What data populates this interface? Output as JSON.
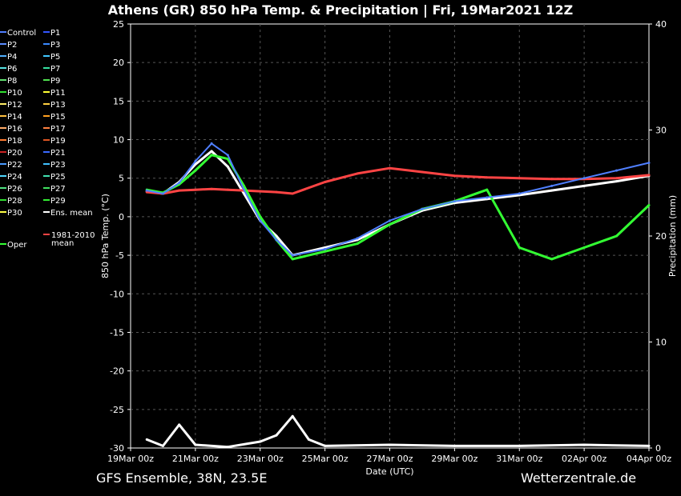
{
  "footer": {
    "left": "GFS Ensemble, 38N, 23.5E",
    "right": "Wetterzentrale.de"
  },
  "chart_data": {
    "type": "line",
    "title": "Athens  (GR)  850 hPa Temp. & Precipitation | Fri, 19Mar2021 12Z",
    "xlabel": "Date (UTC)",
    "ylabel": "850 hPa Temp. (°C)",
    "ylabel_right": "Precipitation (mm)",
    "ylim": [
      -30,
      25
    ],
    "ylim_right": [
      0,
      40
    ],
    "yticks": [
      25,
      20,
      15,
      10,
      5,
      0,
      -5,
      -10,
      -15,
      -20,
      -25,
      -30
    ],
    "yticks_right": [
      40,
      30,
      20,
      10,
      0
    ],
    "xticks": [
      "19Mar 00z",
      "21Mar 00z",
      "23Mar 00z",
      "25Mar 00z",
      "27Mar 00z",
      "29Mar 00z",
      "31Mar 00z",
      "02Apr 00z",
      "04Apr 00z"
    ],
    "x_hours": [
      12,
      24,
      36,
      48,
      60,
      72,
      84,
      96,
      108,
      120,
      144,
      168,
      192,
      216,
      240,
      264,
      288,
      312,
      336,
      360,
      384
    ],
    "grid": true,
    "legend_position": "left",
    "legend": [
      {
        "name": "Control",
        "color": "#4f7fff"
      },
      {
        "name": "P1",
        "color": "#3355ff"
      },
      {
        "name": "P2",
        "color": "#5a8cff"
      },
      {
        "name": "P3",
        "color": "#3a8aff"
      },
      {
        "name": "P4",
        "color": "#4fb0ff"
      },
      {
        "name": "P5",
        "color": "#40c8ff"
      },
      {
        "name": "P6",
        "color": "#55e0e0"
      },
      {
        "name": "P7",
        "color": "#35e0a0"
      },
      {
        "name": "P8",
        "color": "#60e070"
      },
      {
        "name": "P9",
        "color": "#50e050"
      },
      {
        "name": "P10",
        "color": "#30e030"
      },
      {
        "name": "P11",
        "color": "#ffff33"
      },
      {
        "name": "P12",
        "color": "#ffee66"
      },
      {
        "name": "P13",
        "color": "#ffd040"
      },
      {
        "name": "P14",
        "color": "#ffc040"
      },
      {
        "name": "P15",
        "color": "#ffa020"
      },
      {
        "name": "P16",
        "color": "#ffaa66"
      },
      {
        "name": "P17",
        "color": "#ff8040"
      },
      {
        "name": "P18",
        "color": "#ff7a30"
      },
      {
        "name": "P19",
        "color": "#dd5522"
      },
      {
        "name": "P20",
        "color": "#cc2222"
      },
      {
        "name": "P21",
        "color": "#3a6aff"
      },
      {
        "name": "P22",
        "color": "#4a9aff"
      },
      {
        "name": "P23",
        "color": "#40c0ff"
      },
      {
        "name": "P24",
        "color": "#50d8ff"
      },
      {
        "name": "P25",
        "color": "#40e0b0"
      },
      {
        "name": "P26",
        "color": "#50e080"
      },
      {
        "name": "P27",
        "color": "#40e060"
      },
      {
        "name": "P28",
        "color": "#30dd30"
      },
      {
        "name": "P29",
        "color": "#33ee33"
      },
      {
        "name": "P30",
        "color": "#ffff44"
      },
      {
        "name": "Ens. mean",
        "color": "#ffffff"
      },
      {
        "name": "1981-2010 mean",
        "color": "#ff4444"
      },
      {
        "name": "Oper",
        "color": "#33ff33"
      }
    ],
    "series": [
      {
        "name": "Ens. mean",
        "role": "temperature",
        "color": "#ffffff",
        "x": [
          "19Mar 12z",
          "20Mar 00z",
          "20Mar 12z",
          "21Mar 00z",
          "21Mar 12z",
          "22Mar 00z",
          "22Mar 12z",
          "23Mar 00z",
          "23Mar 12z",
          "24Mar 00z",
          "25Mar 00z",
          "26Mar 00z",
          "27Mar 00z",
          "28Mar 00z",
          "29Mar 00z",
          "30Mar 00z",
          "31Mar 00z",
          "01Apr 00z",
          "02Apr 00z",
          "03Apr 00z",
          "04Apr 00z"
        ],
        "values": [
          3.3,
          3.0,
          4.5,
          6.8,
          8.5,
          6.5,
          3.0,
          -0.5,
          -2.5,
          -5.0,
          -4.0,
          -3.0,
          -1.0,
          0.8,
          1.8,
          2.3,
          2.8,
          3.4,
          4.0,
          4.6,
          5.3
        ]
      },
      {
        "name": "1981-2010 mean",
        "role": "temperature",
        "color": "#ff4444",
        "x": [
          "19Mar 12z",
          "20Mar 00z",
          "20Mar 12z",
          "21Mar 00z",
          "21Mar 12z",
          "22Mar 00z",
          "22Mar 12z",
          "23Mar 00z",
          "23Mar 12z",
          "24Mar 00z",
          "25Mar 00z",
          "26Mar 00z",
          "27Mar 00z",
          "28Mar 00z",
          "29Mar 00z",
          "30Mar 00z",
          "31Mar 00z",
          "01Apr 00z",
          "02Apr 00z",
          "03Apr 00z",
          "04Apr 00z"
        ],
        "values": [
          3.2,
          3.0,
          3.4,
          3.5,
          3.6,
          3.5,
          3.4,
          3.3,
          3.2,
          3.0,
          4.5,
          5.6,
          6.3,
          5.8,
          5.3,
          5.1,
          5.0,
          4.9,
          4.9,
          5.0,
          5.4
        ]
      },
      {
        "name": "Oper",
        "role": "temperature",
        "color": "#33ff33",
        "x": [
          "19Mar 12z",
          "20Mar 00z",
          "20Mar 12z",
          "21Mar 00z",
          "21Mar 12z",
          "22Mar 00z",
          "22Mar 12z",
          "23Mar 00z",
          "23Mar 12z",
          "24Mar 00z",
          "25Mar 00z",
          "26Mar 00z",
          "27Mar 00z",
          "28Mar 00z",
          "29Mar 00z",
          "30Mar 00z",
          "31Mar 00z",
          "01Apr 00z",
          "02Apr 00z",
          "03Apr 00z",
          "04Apr 00z"
        ],
        "values": [
          3.5,
          3.1,
          4.2,
          6.0,
          8.0,
          7.5,
          4.0,
          0.0,
          -3.0,
          -5.5,
          -4.5,
          -3.5,
          -1.0,
          1.0,
          2.0,
          3.5,
          -4.0,
          -5.5,
          -4.0,
          -2.5,
          1.5
        ]
      },
      {
        "name": "Control",
        "role": "temperature",
        "color": "#4f7fff",
        "x": [
          "19Mar 12z",
          "20Mar 00z",
          "20Mar 12z",
          "21Mar 00z",
          "21Mar 12z",
          "22Mar 00z",
          "22Mar 12z",
          "23Mar 00z",
          "23Mar 12z",
          "24Mar 00z",
          "25Mar 00z",
          "26Mar 00z",
          "27Mar 00z",
          "28Mar 00z",
          "29Mar 00z",
          "30Mar 00z",
          "31Mar 00z",
          "01Apr 00z",
          "02Apr 00z",
          "03Apr 00z",
          "04Apr 00z"
        ],
        "values": [
          3.4,
          3.0,
          4.4,
          7.2,
          9.5,
          8.0,
          3.5,
          -0.5,
          -3.0,
          -5.0,
          -4.2,
          -2.8,
          -0.5,
          1.0,
          2.0,
          2.5,
          3.0,
          4.0,
          5.0,
          6.0,
          7.0
        ]
      },
      {
        "name": "Ens. mean precipitation",
        "role": "precipitation",
        "color": "#ffffff",
        "x": [
          "19Mar 12z",
          "20Mar 00z",
          "20Mar 12z",
          "21Mar 00z",
          "22Mar 00z",
          "23Mar 00z",
          "23Mar 12z",
          "24Mar 00z",
          "24Mar 12z",
          "25Mar 00z",
          "27Mar 00z",
          "29Mar 00z",
          "31Mar 00z",
          "02Apr 00z",
          "04Apr 00z"
        ],
        "values": [
          0.8,
          0.2,
          2.2,
          0.3,
          0.1,
          0.6,
          1.2,
          3.0,
          0.8,
          0.2,
          0.3,
          0.2,
          0.2,
          0.3,
          0.2
        ]
      }
    ]
  }
}
